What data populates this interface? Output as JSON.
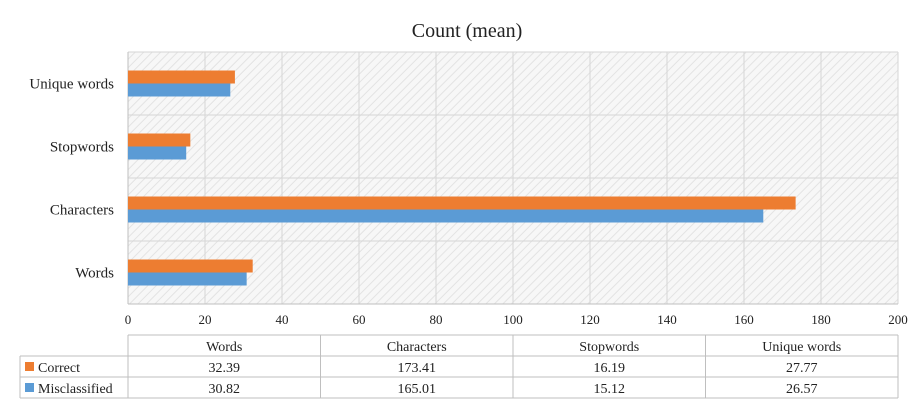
{
  "chart_data": {
    "type": "bar",
    "orientation": "horizontal",
    "title": "Count (mean)",
    "categories": [
      "Words",
      "Characters",
      "Stopwords",
      "Unique words"
    ],
    "series": [
      {
        "name": "Correct",
        "values": [
          32.39,
          173.41,
          16.19,
          27.77
        ],
        "color": "#ED7D31"
      },
      {
        "name": "Misclassified",
        "values": [
          30.82,
          165.01,
          15.12,
          26.57
        ],
        "color": "#5B9BD5"
      }
    ],
    "xlim": [
      0,
      200
    ],
    "xticks": [
      0,
      20,
      40,
      60,
      80,
      100,
      120,
      140,
      160,
      180,
      200
    ],
    "grid": true,
    "data_table": {
      "headers": [
        "Words",
        "Characters",
        "Stopwords",
        "Unique words"
      ],
      "rows": [
        {
          "label": "Correct",
          "values": [
            "32.39",
            "173.41",
            "16.19",
            "27.77"
          ]
        },
        {
          "label": "Misclassified",
          "values": [
            "30.82",
            "165.01",
            "15.12",
            "26.57"
          ]
        }
      ]
    }
  }
}
